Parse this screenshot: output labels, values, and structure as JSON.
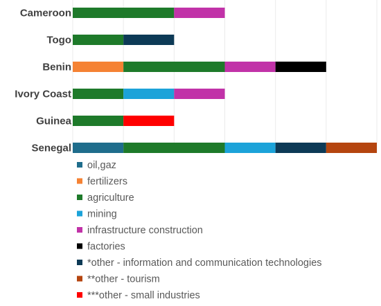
{
  "chart_data": {
    "type": "bar",
    "orientation": "horizontal",
    "stacked": true,
    "title": "",
    "xlabel": "",
    "ylabel": "",
    "xlim": [
      0,
      6
    ],
    "grid": true,
    "legend_position": "bottom",
    "categories": [
      "Cameroon",
      "Togo",
      "Benin",
      "Ivory Coast",
      "Guinea",
      "Senegal"
    ],
    "series": [
      {
        "name": "oil,gaz",
        "color": "#1f6d8c",
        "values": [
          0,
          0,
          0,
          0,
          0,
          1
        ]
      },
      {
        "name": "fertilizers",
        "color": "#f58233",
        "values": [
          0,
          0,
          1,
          0,
          0,
          0
        ]
      },
      {
        "name": "agriculture",
        "color": "#1e7a2a",
        "values": [
          2,
          1,
          2,
          1,
          1,
          2
        ]
      },
      {
        "name": "mining",
        "color": "#1ca3d9",
        "values": [
          0,
          0,
          0,
          1,
          0,
          1
        ]
      },
      {
        "name": "infrastructure construction",
        "color": "#c132a8",
        "values": [
          1,
          0,
          1,
          1,
          0,
          0
        ]
      },
      {
        "name": "factories",
        "color": "#000000",
        "values": [
          0,
          0,
          1,
          0,
          0,
          0
        ]
      },
      {
        "name": "*other - information and communication technologies",
        "color": "#0d3a56",
        "values": [
          0,
          1,
          0,
          0,
          0,
          1
        ]
      },
      {
        "name": "**other - tourism",
        "color": "#b5450f",
        "values": [
          0,
          0,
          0,
          0,
          0,
          1
        ]
      },
      {
        "name": "***other - small industries",
        "color": "#ff0000",
        "values": [
          0,
          0,
          0,
          0,
          1,
          0
        ]
      }
    ]
  }
}
